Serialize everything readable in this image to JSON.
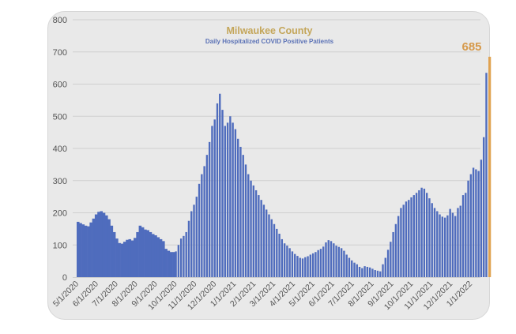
{
  "chart_data": {
    "type": "bar",
    "title": "Milwaukee County",
    "subtitle": "Daily Hospitalized COVID Positive Patients",
    "xlabel": "",
    "ylabel": "",
    "ylim": [
      0,
      800
    ],
    "yticks": [
      "0",
      "100",
      "200",
      "300",
      "400",
      "500",
      "600",
      "700",
      "800"
    ],
    "grid": true,
    "start_date": "5/1/2020",
    "sample_interval_days": 4,
    "xtick_labels": [
      "5/1/2020",
      "6/1/2020",
      "7/1/2020",
      "8/1/2020",
      "9/1/2020",
      "10/1/2020",
      "11/1/2020",
      "12/1/2020",
      "1/1/2021",
      "2/1/2021",
      "3/1/2021",
      "4/1/2021",
      "5/1/2021",
      "6/1/2021",
      "7/1/2021",
      "8/1/2021",
      "9/1/2021",
      "10/1/2021",
      "11/1/2021",
      "12/1/2021",
      "1/1/2022"
    ],
    "series": [
      {
        "name": "Daily Hospitalized COVID Positive Patients",
        "color": "#4f6cbd",
        "values": [
          172,
          168,
          164,
          160,
          158,
          170,
          182,
          195,
          203,
          205,
          200,
          192,
          180,
          160,
          140,
          120,
          106,
          104,
          110,
          116,
          118,
          114,
          122,
          140,
          160,
          155,
          148,
          146,
          140,
          134,
          130,
          124,
          118,
          112,
          88,
          82,
          78,
          78,
          80,
          100,
          120,
          128,
          140,
          175,
          205,
          225,
          250,
          290,
          320,
          345,
          380,
          420,
          470,
          490,
          540,
          570,
          520,
          470,
          480,
          500,
          480,
          460,
          430,
          405,
          380,
          350,
          320,
          300,
          285,
          270,
          255,
          240,
          225,
          210,
          195,
          180,
          165,
          150,
          135,
          118,
          105,
          98,
          90,
          80,
          72,
          66,
          60,
          58,
          62,
          65,
          70,
          74,
          78,
          84,
          88,
          95,
          108,
          115,
          112,
          105,
          98,
          94,
          90,
          82,
          70,
          60,
          52,
          45,
          40,
          32,
          28,
          34,
          32,
          30,
          26,
          22,
          20,
          18,
          40,
          60,
          85,
          110,
          140,
          165,
          190,
          215,
          225,
          235,
          240,
          248,
          255,
          262,
          270,
          278,
          275,
          262,
          245,
          230,
          215,
          205,
          195,
          188,
          185,
          192,
          212,
          200,
          190,
          215,
          222,
          255,
          262,
          300,
          320,
          340,
          335,
          330,
          365,
          435,
          635
        ]
      }
    ],
    "highlight": {
      "date": "1/7/2022",
      "value": 685,
      "label": "685",
      "color": "#e0a250"
    }
  }
}
